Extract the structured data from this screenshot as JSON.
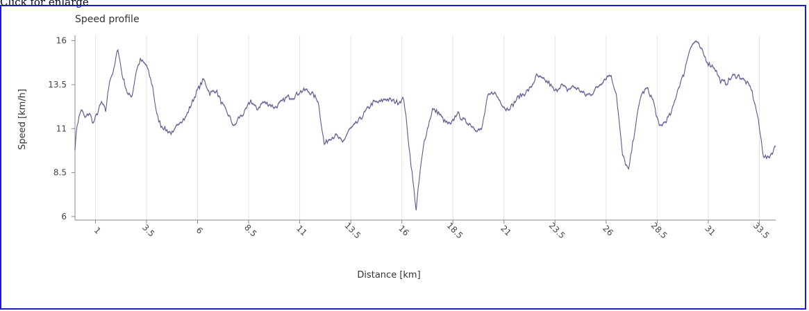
{
  "page": {
    "caption": "Click for enlarge",
    "frame_color": "#1a1ad6"
  },
  "chart_data": {
    "type": "line",
    "title": "Speed profile",
    "xlabel": "Distance [km]",
    "ylabel": "Speed [km/h]",
    "xlim": [
      0,
      34.3
    ],
    "ylim": [
      5.8,
      16.3
    ],
    "yticks": [
      "16",
      "13.5",
      "11",
      "8.5",
      "6"
    ],
    "ytick_values": [
      16,
      13.5,
      11,
      8.5,
      6
    ],
    "xticks": [
      "1",
      "3.5",
      "6",
      "8.5",
      "11",
      "13.5",
      "16",
      "18.5",
      "21",
      "23.5",
      "26",
      "28.5",
      "31",
      "33.5"
    ],
    "xtick_values": [
      1,
      3.5,
      6,
      8.5,
      11,
      13.5,
      16,
      18.5,
      21,
      23.5,
      26,
      28.5,
      31,
      33.5
    ],
    "grid": true,
    "line_color": "#5a5a8a",
    "fill_color": "#b8b8dc",
    "series": [
      {
        "x": [
          0.0,
          0.1,
          0.3,
          0.5,
          0.7,
          0.9,
          1.1,
          1.3,
          1.5,
          1.7,
          1.9,
          2.1,
          2.3,
          2.6,
          2.8,
          3.0,
          3.2,
          3.5,
          3.8,
          4.0,
          4.2,
          4.5,
          4.8,
          5.1,
          5.4,
          5.7,
          6.0,
          6.3,
          6.6,
          6.9,
          7.2,
          7.5,
          7.8,
          8.0,
          8.3,
          8.6,
          8.9,
          9.2,
          9.5,
          9.8,
          10.1,
          10.4,
          10.7,
          11.0,
          11.3,
          11.6,
          11.9,
          12.2,
          12.5,
          12.8,
          13.1,
          13.4,
          13.7,
          14.0,
          14.3,
          14.6,
          14.9,
          15.2,
          15.5,
          15.8,
          16.1,
          16.4,
          16.7,
          16.9,
          17.1,
          17.3,
          17.5,
          17.8,
          18.1,
          18.4,
          18.7,
          19.0,
          19.3,
          19.6,
          19.9,
          20.2,
          20.5,
          20.8,
          21.1,
          21.4,
          21.7,
          22.0,
          22.3,
          22.6,
          22.9,
          23.2,
          23.5,
          23.8,
          24.1,
          24.4,
          24.7,
          25.0,
          25.3,
          25.6,
          25.9,
          26.2,
          26.5,
          26.8,
          27.1,
          27.4,
          27.7,
          28.0,
          28.3,
          28.6,
          28.9,
          29.2,
          29.5,
          29.8,
          30.1,
          30.4,
          30.7,
          31.0,
          31.3,
          31.6,
          31.9,
          32.2,
          32.5,
          32.8,
          33.1,
          33.4,
          33.7,
          33.9,
          34.1,
          34.3
        ],
        "y": [
          9.9,
          11.2,
          12.1,
          11.6,
          11.9,
          11.3,
          11.9,
          12.5,
          12.0,
          13.8,
          14.3,
          15.6,
          14.1,
          12.9,
          12.9,
          14.3,
          14.9,
          14.6,
          13.4,
          11.8,
          11.2,
          10.9,
          10.7,
          11.4,
          11.6,
          12.4,
          13.2,
          13.8,
          13.0,
          13.2,
          12.4,
          11.8,
          11.1,
          11.6,
          11.9,
          12.6,
          12.1,
          12.5,
          12.4,
          12.2,
          12.5,
          12.8,
          12.8,
          13.1,
          13.2,
          13.0,
          12.6,
          10.1,
          10.5,
          10.6,
          10.2,
          10.9,
          11.2,
          11.6,
          12.1,
          12.5,
          12.5,
          12.7,
          12.6,
          12.5,
          12.7,
          9.5,
          6.4,
          8.6,
          10.3,
          11.2,
          12.1,
          11.9,
          11.4,
          11.2,
          11.9,
          11.5,
          11.3,
          11.0,
          10.9,
          12.8,
          13.1,
          12.6,
          12.1,
          12.3,
          12.8,
          13.0,
          13.3,
          14.0,
          13.8,
          13.6,
          13.1,
          13.5,
          13.2,
          13.4,
          13.2,
          12.9,
          13.0,
          13.4,
          13.8,
          14.1,
          13.0,
          9.5,
          8.6,
          10.9,
          12.9,
          13.3,
          12.6,
          11.1,
          11.4,
          11.9,
          13.2,
          14.1,
          15.6,
          16.0,
          15.4,
          14.7,
          14.5,
          13.7,
          13.6,
          14.0,
          14.0,
          13.7,
          13.3,
          11.8,
          9.5,
          9.3,
          9.6,
          10.0
        ],
        "noise_seed": 7
      }
    ]
  }
}
